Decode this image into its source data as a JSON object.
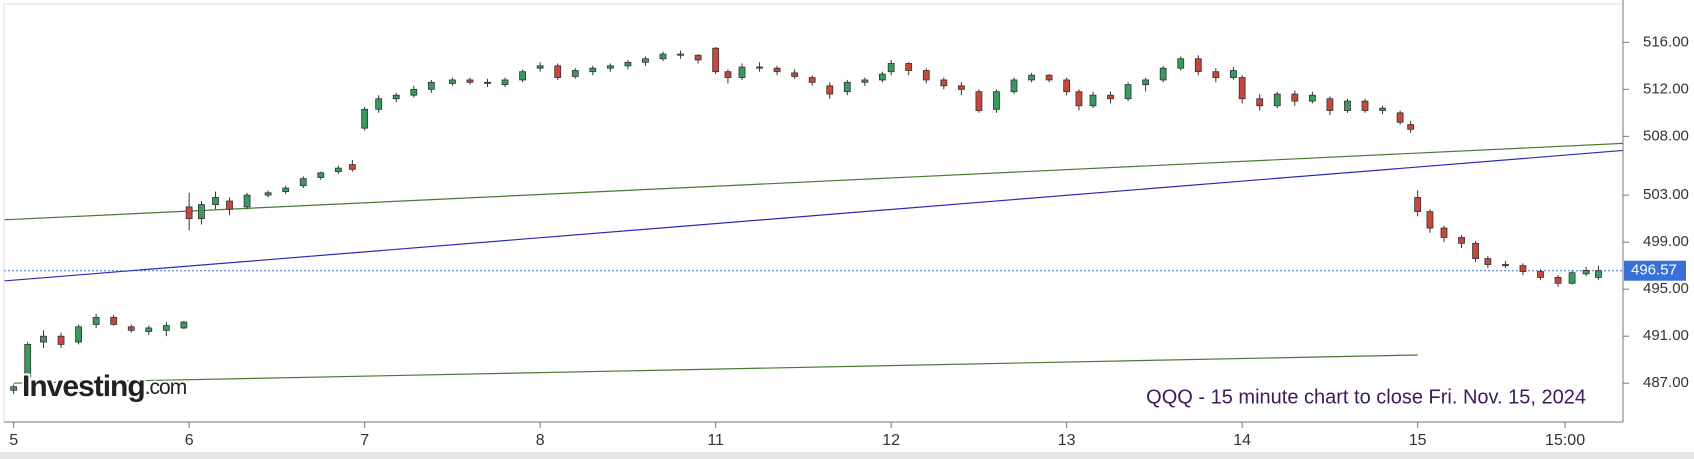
{
  "chart_data": {
    "type": "candlestick",
    "title": "QQQ - 15 minute chart to close Fri. Nov. 15, 2024",
    "logo": {
      "name": "Investing",
      "suffix": ".com"
    },
    "ylim": [
      483.7,
      519.6
    ],
    "yticks": [
      {
        "value": 516,
        "label": "516.00"
      },
      {
        "value": 512,
        "label": "512.00"
      },
      {
        "value": 508,
        "label": "508.00"
      },
      {
        "value": 503,
        "label": "503.00"
      },
      {
        "value": 499,
        "label": "499.00"
      },
      {
        "value": 495,
        "label": "495.00"
      },
      {
        "value": 491,
        "label": "491.00"
      },
      {
        "value": 487,
        "label": "487.00"
      }
    ],
    "xlim": [
      -0.055,
      9.17
    ],
    "xticks": [
      {
        "value": 0,
        "label": "5"
      },
      {
        "value": 1,
        "label": "6"
      },
      {
        "value": 2,
        "label": "7"
      },
      {
        "value": 3,
        "label": "8"
      },
      {
        "value": 4,
        "label": "11"
      },
      {
        "value": 5,
        "label": "12"
      },
      {
        "value": 6,
        "label": "13"
      },
      {
        "value": 7,
        "label": "14"
      },
      {
        "value": 8,
        "label": "15"
      },
      {
        "value": 8.84,
        "label": "15:00"
      }
    ],
    "up_color": "#3a9a5b",
    "down_color": "#c8463c",
    "candles": {
      "x": [
        0,
        0.08,
        0.17,
        0.27,
        0.37,
        0.47,
        0.57,
        0.67,
        0.77,
        0.87,
        0.97,
        1,
        1.07,
        1.15,
        1.23,
        1.33,
        1.45,
        1.55,
        1.65,
        1.75,
        1.85,
        1.93,
        2,
        2.08,
        2.18,
        2.28,
        2.38,
        2.5,
        2.6,
        2.7,
        2.8,
        2.9,
        3,
        3.1,
        3.2,
        3.3,
        3.4,
        3.5,
        3.6,
        3.7,
        3.8,
        3.9,
        4,
        4.07,
        4.15,
        4.25,
        4.35,
        4.45,
        4.55,
        4.65,
        4.75,
        4.85,
        4.95,
        5,
        5.1,
        5.2,
        5.3,
        5.4,
        5.5,
        5.6,
        5.7,
        5.8,
        5.9,
        6,
        6.07,
        6.15,
        6.25,
        6.35,
        6.45,
        6.55,
        6.65,
        6.75,
        6.85,
        6.95,
        7,
        7.1,
        7.2,
        7.3,
        7.4,
        7.5,
        7.6,
        7.7,
        7.8,
        7.9,
        7.96,
        8,
        8.07,
        8.15,
        8.25,
        8.33,
        8.4,
        8.5,
        8.6,
        8.7,
        8.8,
        8.88,
        8.96,
        9.03
      ],
      "open": [
        486.4,
        487.5,
        490.5,
        491.0,
        490.5,
        492.0,
        492.6,
        491.8,
        491.4,
        491.5,
        491.7,
        502.0,
        501.0,
        502.2,
        502.5,
        502.0,
        503.0,
        503.3,
        503.8,
        504.5,
        505.0,
        505.6,
        508.7,
        510.3,
        511.2,
        511.5,
        512.0,
        512.5,
        512.8,
        512.6,
        512.4,
        512.8,
        513.8,
        514.0,
        513.1,
        513.5,
        513.8,
        514.0,
        514.3,
        514.6,
        515.0,
        514.9,
        515.5,
        513.5,
        513.0,
        513.9,
        513.8,
        513.4,
        513.0,
        512.3,
        511.8,
        512.6,
        512.8,
        513.5,
        514.2,
        513.6,
        512.8,
        512.3,
        511.8,
        510.3,
        511.8,
        512.8,
        513.2,
        512.8,
        511.8,
        510.6,
        511.5,
        511.2,
        512.4,
        512.8,
        513.8,
        514.6,
        513.5,
        513.0,
        513.0,
        511.2,
        510.6,
        511.6,
        511.0,
        511.2,
        510.2,
        511.0,
        510.2,
        510.0,
        509.0,
        502.8,
        501.6,
        500.2,
        499.4,
        498.9,
        497.6,
        497.1,
        497.0,
        496.5,
        496.0,
        495.5,
        496.3,
        496.0
      ],
      "high": [
        486.9,
        490.5,
        491.5,
        491.3,
        492.0,
        492.9,
        492.8,
        492.0,
        491.9,
        492.2,
        492.3,
        503.2,
        502.5,
        503.3,
        502.8,
        503.2,
        503.4,
        503.8,
        504.6,
        505.0,
        505.5,
        506.0,
        510.5,
        511.5,
        511.7,
        512.3,
        512.8,
        513.0,
        513.0,
        512.9,
        513.0,
        513.7,
        514.3,
        514.2,
        513.8,
        514.0,
        514.2,
        514.5,
        514.8,
        515.2,
        515.3,
        515.0,
        515.6,
        513.7,
        514.2,
        514.3,
        514.0,
        513.7,
        513.2,
        512.6,
        512.8,
        513.0,
        513.5,
        514.5,
        514.3,
        513.8,
        513.0,
        512.6,
        512.0,
        512.0,
        513.0,
        513.4,
        513.3,
        513.0,
        512.0,
        511.8,
        511.8,
        512.6,
        513.0,
        514.0,
        514.8,
        514.9,
        513.8,
        513.9,
        513.2,
        511.6,
        511.8,
        511.9,
        511.8,
        511.4,
        511.2,
        511.2,
        510.6,
        510.2,
        509.3,
        503.4,
        501.8,
        500.4,
        499.6,
        499.1,
        497.8,
        497.4,
        497.2,
        496.7,
        496.2,
        496.6,
        496.9,
        497.0
      ],
      "low": [
        486.1,
        487.2,
        490.0,
        490.0,
        490.3,
        491.7,
        491.9,
        491.3,
        491.1,
        491.0,
        491.6,
        500.0,
        500.5,
        501.8,
        501.3,
        501.8,
        502.8,
        503.1,
        503.6,
        504.3,
        504.8,
        505.0,
        508.5,
        510.0,
        510.9,
        511.3,
        511.7,
        512.3,
        512.4,
        512.2,
        512.2,
        512.6,
        513.5,
        512.8,
        512.9,
        513.2,
        513.5,
        513.7,
        514.0,
        514.4,
        514.6,
        514.2,
        513.3,
        512.5,
        512.8,
        513.5,
        513.2,
        512.9,
        512.3,
        511.2,
        511.5,
        512.3,
        512.6,
        513.2,
        513.2,
        512.5,
        512.0,
        511.5,
        510.0,
        510.0,
        511.6,
        512.6,
        512.6,
        511.5,
        510.2,
        510.4,
        510.8,
        511.0,
        511.8,
        512.6,
        513.6,
        513.2,
        512.6,
        512.8,
        510.8,
        510.2,
        510.4,
        510.6,
        510.8,
        509.8,
        510.0,
        510.0,
        509.9,
        509.0,
        508.3,
        501.2,
        499.8,
        499.0,
        498.5,
        497.3,
        496.8,
        496.8,
        496.2,
        495.8,
        495.2,
        495.4,
        496.1,
        495.8
      ],
      "close": [
        486.7,
        490.3,
        491.0,
        490.3,
        491.8,
        492.6,
        492.0,
        491.5,
        491.7,
        491.9,
        492.2,
        501.0,
        502.2,
        502.8,
        501.8,
        503.0,
        503.2,
        503.6,
        504.4,
        504.9,
        505.3,
        505.2,
        510.3,
        511.2,
        511.5,
        512.0,
        512.6,
        512.8,
        512.6,
        512.5,
        512.8,
        513.5,
        514.0,
        513.0,
        513.6,
        513.8,
        514.0,
        514.3,
        514.6,
        515.0,
        514.9,
        514.5,
        513.5,
        513.0,
        513.9,
        513.8,
        513.5,
        513.1,
        512.6,
        511.6,
        512.6,
        512.8,
        513.3,
        514.2,
        513.6,
        512.8,
        512.3,
        512.0,
        510.2,
        511.8,
        512.8,
        513.2,
        512.8,
        511.8,
        510.6,
        511.5,
        511.2,
        512.4,
        512.8,
        513.8,
        514.6,
        513.5,
        513.0,
        513.6,
        511.2,
        510.6,
        511.6,
        511.0,
        511.5,
        510.2,
        511.0,
        510.2,
        510.4,
        509.2,
        508.6,
        501.6,
        500.2,
        499.4,
        498.9,
        497.6,
        497.1,
        497.0,
        496.5,
        496.0,
        495.5,
        496.4,
        496.6,
        496.57
      ]
    },
    "lines": [
      {
        "color": "#4a7a32",
        "x": [
          -0.055,
          9.17
        ],
        "y": [
          500.9,
          507.4
        ]
      },
      {
        "color": "#2a2ab8",
        "x": [
          -0.055,
          9.17
        ],
        "y": [
          495.7,
          506.8
        ]
      },
      {
        "color": "#4a7a32",
        "x": [
          0,
          8.0
        ],
        "y": [
          487.0,
          489.4
        ]
      }
    ],
    "last_price": {
      "value": 496.57,
      "label": "496.57",
      "color": "#3b6fd8"
    }
  }
}
